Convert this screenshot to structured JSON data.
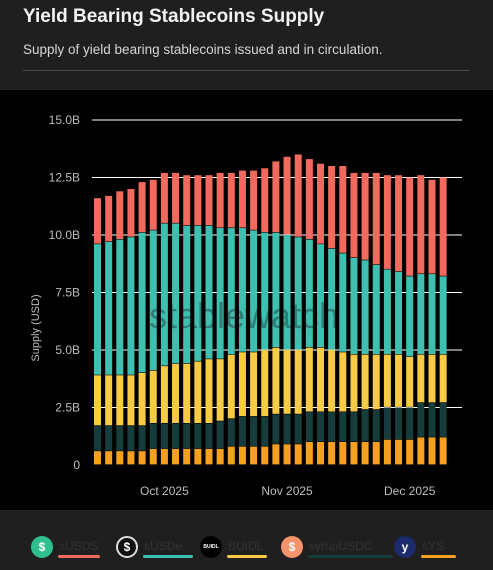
{
  "header": {
    "title": "Yield Bearing Stablecoins Supply",
    "subtitle": "Supply of yield bearing stablecoins issued and in circulation."
  },
  "watermark": "stablewatch",
  "chart_data": {
    "type": "bar",
    "stacked": true,
    "ylabel": "Supply (USD)",
    "ylim": [
      0,
      15
    ],
    "yticks": [
      "0",
      "2.5B",
      "5.0B",
      "7.5B",
      "10.0B",
      "12.5B",
      "15.0B"
    ],
    "xticks": [
      {
        "label": "Oct 2025",
        "index": 6
      },
      {
        "label": "Nov 2025",
        "index": 17
      },
      {
        "label": "Dec 2025",
        "index": 28
      }
    ],
    "categories": [
      "1",
      "2",
      "3",
      "4",
      "5",
      "6",
      "7",
      "8",
      "9",
      "10",
      "11",
      "12",
      "13",
      "14",
      "15",
      "16",
      "17",
      "18",
      "19",
      "20",
      "21",
      "22",
      "23",
      "24",
      "25",
      "26",
      "27",
      "28",
      "29",
      "30",
      "31",
      "32"
    ],
    "series": [
      {
        "name": "sUSDS",
        "color": "#f26a5d",
        "values": [
          2.0,
          2.0,
          2.1,
          2.1,
          2.2,
          2.2,
          2.2,
          2.2,
          2.2,
          2.2,
          2.2,
          2.4,
          2.4,
          2.5,
          2.6,
          2.8,
          3.1,
          3.4,
          3.6,
          3.5,
          3.5,
          3.6,
          3.8,
          3.7,
          3.8,
          4.0,
          4.1,
          4.2,
          4.3,
          4.3,
          4.1,
          4.3
        ]
      },
      {
        "name": "sUSDe",
        "color": "#3fbfb0",
        "values": [
          5.7,
          5.8,
          5.9,
          6.0,
          6.1,
          6.1,
          6.2,
          6.1,
          6.0,
          5.9,
          5.8,
          5.7,
          5.5,
          5.4,
          5.3,
          5.1,
          5.0,
          5.0,
          4.9,
          4.7,
          4.5,
          4.4,
          4.3,
          4.2,
          4.1,
          3.9,
          3.7,
          3.6,
          3.5,
          3.5,
          3.5,
          3.4
        ]
      },
      {
        "name": "BUIDL",
        "color": "#f7cb45",
        "values": [
          2.2,
          2.2,
          2.2,
          2.2,
          2.3,
          2.3,
          2.5,
          2.6,
          2.6,
          2.7,
          2.8,
          2.7,
          2.8,
          2.8,
          2.8,
          2.9,
          2.9,
          2.8,
          2.8,
          2.8,
          2.8,
          2.7,
          2.6,
          2.5,
          2.4,
          2.4,
          2.3,
          2.3,
          2.2,
          2.1,
          2.1,
          2.1
        ]
      },
      {
        "name": "syrupUSDC",
        "color": "#163d3b",
        "values": [
          1.1,
          1.1,
          1.1,
          1.1,
          1.1,
          1.1,
          1.1,
          1.1,
          1.1,
          1.1,
          1.1,
          1.2,
          1.2,
          1.3,
          1.3,
          1.3,
          1.3,
          1.3,
          1.3,
          1.3,
          1.3,
          1.3,
          1.3,
          1.3,
          1.4,
          1.4,
          1.4,
          1.4,
          1.4,
          1.5,
          1.5,
          1.5
        ]
      },
      {
        "name": "sYS",
        "color": "#f5a021",
        "values": [
          0.6,
          0.6,
          0.6,
          0.6,
          0.6,
          0.7,
          0.7,
          0.7,
          0.7,
          0.7,
          0.7,
          0.7,
          0.8,
          0.8,
          0.8,
          0.8,
          0.9,
          0.9,
          0.9,
          1.0,
          1.0,
          1.0,
          1.0,
          1.0,
          1.0,
          1.0,
          1.1,
          1.1,
          1.1,
          1.2,
          1.2,
          1.2
        ]
      }
    ]
  },
  "legend": [
    {
      "name": "sUSDS",
      "icon": "dollar-circle-icon",
      "glyph": "$",
      "icon_bg": "#2fbf8f",
      "color": "#f26a5d"
    },
    {
      "name": "sUSDe",
      "icon": "usde-icon",
      "glyph": "$",
      "icon_bg": "#111111",
      "color": "#3fbfb0"
    },
    {
      "name": "BUIDL",
      "icon": "buidl-icon",
      "glyph": "BUIDL",
      "icon_bg": "#000000",
      "color": "#f7cb45"
    },
    {
      "name": "syrupUSDC",
      "icon": "syrup-icon",
      "glyph": "$",
      "icon_bg": "#f5946a",
      "color": "#163d3b"
    },
    {
      "name": "sYS",
      "icon": "ys-icon",
      "glyph": "y",
      "icon_bg": "#1d2a6b",
      "color": "#f5a021"
    }
  ]
}
